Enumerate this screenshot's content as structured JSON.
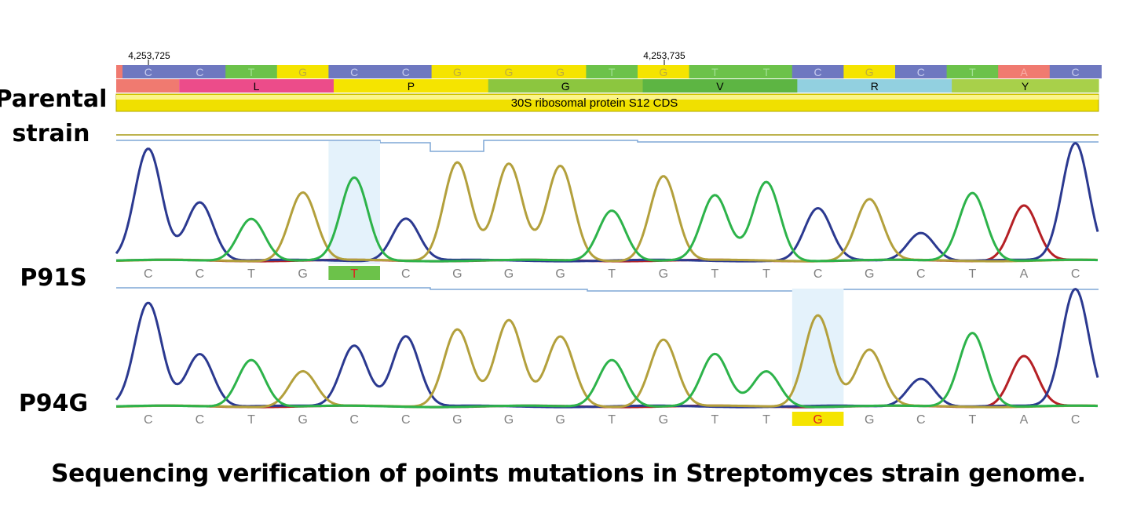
{
  "labels": {
    "parental_line1": "Parental",
    "parental_line2": "strain",
    "mutant1": "P91S",
    "mutant2": "P94G"
  },
  "caption": "Sequencing verification of points mutations in Streptomyces strain genome.",
  "ruler": {
    "pos1": "4,253,725",
    "pos2": "4,253,735"
  },
  "cds_label": "30S ribosomal protein S12 CDS",
  "reference_sequence": [
    "C",
    "C",
    "T",
    "G",
    "C",
    "C",
    "G",
    "G",
    "G",
    "T",
    "G",
    "T",
    "T",
    "C",
    "G",
    "C",
    "T",
    "A",
    "C"
  ],
  "amino_acids": [
    "L",
    "P",
    "G",
    "V",
    "R",
    "Y"
  ],
  "p91s_calls": [
    "C",
    "C",
    "T",
    "G",
    "T",
    "C",
    "G",
    "G",
    "G",
    "T",
    "G",
    "T",
    "T",
    "C",
    "G",
    "C",
    "T",
    "A",
    "C"
  ],
  "p94g_calls": [
    "C",
    "C",
    "T",
    "G",
    "C",
    "C",
    "G",
    "G",
    "G",
    "T",
    "G",
    "T",
    "T",
    "G",
    "G",
    "C",
    "T",
    "A",
    "C"
  ],
  "p91s_mutation_index": 4,
  "p94g_mutation_index": 13,
  "colors": {
    "A": "#f07a70",
    "C": "#6e78c0",
    "G": "#f5e400",
    "T": "#6cc24a",
    "trace_A": "#b52025",
    "trace_C": "#2b3990",
    "trace_G": "#b3a03c",
    "trace_T": "#2db34a",
    "aa_L": "#ec4c8a",
    "aa_P": "#f5e400",
    "aa_G": "#8cc63f",
    "aa_V": "#5db543",
    "aa_R": "#92d0e0",
    "aa_Y": "#a8d04a",
    "highlight": "#e4f2fb",
    "mutant_text": "#e02020"
  },
  "traces_p91s": {
    "C": [
      0.95,
      0.5,
      0,
      0,
      0,
      0.36,
      0,
      0,
      0,
      0,
      0,
      0,
      0,
      0.44,
      0,
      0.24,
      0,
      0,
      1.0
    ],
    "T": [
      0,
      0,
      0.36,
      0,
      0.7,
      0,
      0,
      0,
      0,
      0.43,
      0,
      0.55,
      0.67,
      0,
      0,
      0,
      0.58,
      0,
      0
    ],
    "G": [
      0,
      0,
      0,
      0.58,
      0,
      0,
      0.84,
      0.82,
      0.8,
      0,
      0.72,
      0,
      0,
      0,
      0.52,
      0,
      0,
      0,
      0
    ],
    "A": [
      0,
      0,
      0,
      0,
      0,
      0,
      0,
      0,
      0,
      0,
      0,
      0,
      0,
      0,
      0,
      0,
      0,
      0.47,
      0
    ]
  },
  "traces_p94g": {
    "C": [
      0.88,
      0.45,
      0,
      0,
      0.52,
      0.6,
      0,
      0,
      0,
      0,
      0,
      0,
      0,
      0,
      0,
      0.24,
      0,
      0,
      1.0
    ],
    "T": [
      0,
      0,
      0.4,
      0,
      0,
      0,
      0,
      0,
      0,
      0.4,
      0,
      0.44,
      0.3,
      0,
      0,
      0,
      0.63,
      0,
      0
    ],
    "G": [
      0,
      0,
      0,
      0.3,
      0,
      0,
      0.66,
      0.73,
      0.59,
      0,
      0.57,
      0,
      0,
      0.78,
      0.48,
      0,
      0,
      0,
      0
    ],
    "A": [
      0,
      0,
      0,
      0,
      0,
      0,
      0,
      0,
      0,
      0,
      0,
      0,
      0,
      0,
      0,
      0,
      0,
      0.43,
      0
    ]
  }
}
